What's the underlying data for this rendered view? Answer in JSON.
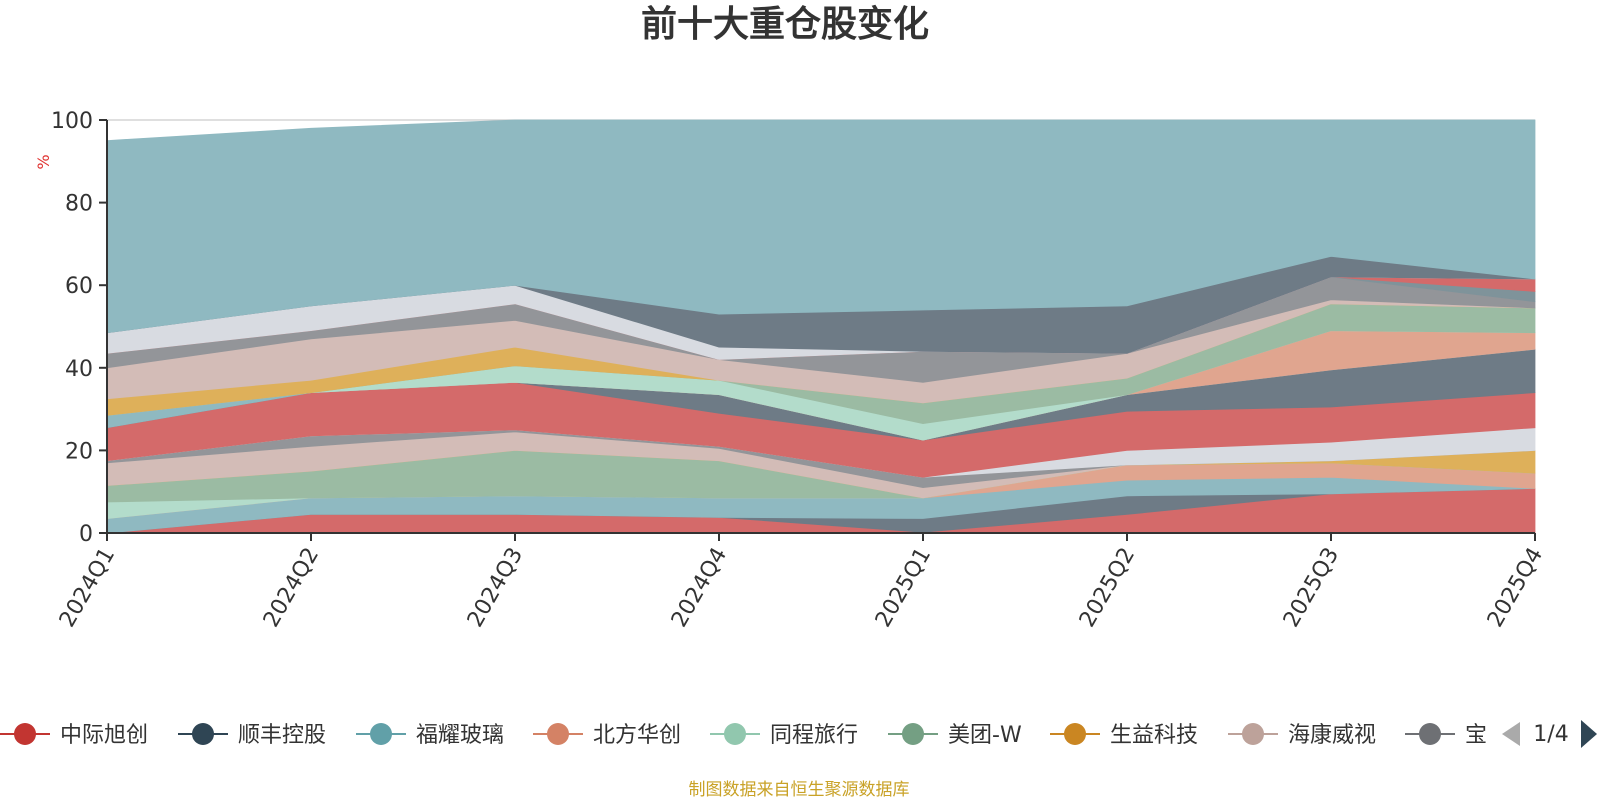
{
  "chart_data": {
    "type": "area",
    "title": "前十大重仓股变化",
    "ylabel": "%",
    "ylim": [
      0,
      100
    ],
    "yticks": [
      0,
      20,
      40,
      60,
      80,
      100
    ],
    "categories": [
      "2024Q1",
      "2024Q2",
      "2024Q3",
      "2024Q4",
      "2025Q1",
      "2025Q2",
      "2025Q3",
      "2025Q4"
    ],
    "grid": true,
    "legend_position": "bottom",
    "legend_visible": [
      "中际旭创",
      "顺丰控股",
      "福耀玻璃",
      "北方华创",
      "同程旅行",
      "美团-W",
      "生益科技",
      "海康威视",
      "宝"
    ],
    "legend_page": "1/4",
    "source": "制图数据来自恒生聚源数据库",
    "layers": [
      {
        "color": "#d46a6a",
        "lower": [
          0,
          0,
          0,
          0,
          0,
          0,
          0,
          0
        ],
        "upper": [
          0,
          4.5,
          4.5,
          3.8,
          0.2,
          4.5,
          9.5,
          10.8
        ]
      },
      {
        "color": "#6e7b86",
        "lower": [
          0,
          4.5,
          4.5,
          3.8,
          0.2,
          4.5,
          9.5,
          10.8
        ],
        "upper": [
          0,
          4.5,
          4.5,
          3.8,
          3.5,
          9.0,
          9.5,
          10.8
        ]
      },
      {
        "color": "#8fb9c1",
        "lower": [
          0,
          4.5,
          4.5,
          3.8,
          3.5,
          9.0,
          9.5,
          10.8
        ],
        "upper": [
          3.5,
          8.5,
          9.0,
          8.5,
          8.5,
          12.8,
          13.5,
          10.8
        ]
      },
      {
        "color": "#e0a58f",
        "lower": [
          3.5,
          8.5,
          9.0,
          8.5,
          8.5,
          12.8,
          13.5,
          10.8
        ],
        "upper": [
          3.5,
          8.5,
          9.0,
          8.5,
          8.5,
          16.5,
          17.0,
          14.5
        ]
      },
      {
        "color": "#b3dccb",
        "lower": [
          3.5,
          8.5,
          9.0,
          8.5,
          8.5,
          16.5,
          17.0,
          14.5
        ],
        "upper": [
          7.5,
          8.5,
          9.0,
          8.5,
          8.5,
          16.5,
          17.0,
          14.5
        ]
      },
      {
        "color": "#9bbba3",
        "lower": [
          7.5,
          8.5,
          9.0,
          8.5,
          8.5,
          16.5,
          17.0,
          14.5
        ],
        "upper": [
          11.5,
          15.0,
          20.0,
          17.5,
          8.5,
          16.5,
          17.0,
          14.5
        ]
      },
      {
        "color": "#deb05a",
        "lower": [
          11.5,
          15.0,
          20.0,
          17.5,
          8.5,
          16.5,
          17.0,
          14.5
        ],
        "upper": [
          11.5,
          15.0,
          20.0,
          17.5,
          8.5,
          16.5,
          17.5,
          20.0
        ]
      },
      {
        "color": "#d3bcb7",
        "lower": [
          11.5,
          15.0,
          20.0,
          17.5,
          8.5,
          16.5,
          17.5,
          20.0
        ],
        "upper": [
          17.0,
          21.0,
          24.5,
          20.5,
          11.0,
          16.5,
          17.5,
          20.0
        ]
      },
      {
        "color": "#939599",
        "lower": [
          17.0,
          21.0,
          24.5,
          20.5,
          11.0,
          16.5,
          17.5,
          20.0
        ],
        "upper": [
          17.5,
          23.5,
          25.0,
          21.0,
          13.5,
          16.5,
          17.5,
          20.0
        ]
      },
      {
        "color": "#d8dbe1",
        "lower": [
          17.5,
          23.5,
          25.0,
          21.0,
          13.5,
          16.5,
          17.5,
          20.0
        ],
        "upper": [
          17.5,
          23.5,
          25.0,
          21.0,
          13.5,
          20.0,
          22.0,
          25.5
        ]
      },
      {
        "color": "#d46a6a",
        "lower": [
          17.5,
          23.5,
          25.0,
          21.0,
          13.5,
          20.0,
          22.0,
          25.5
        ],
        "upper": [
          25.5,
          34.0,
          36.5,
          29.0,
          22.5,
          29.5,
          30.5,
          34.0
        ]
      },
      {
        "color": "#6e7b86",
        "lower": [
          25.5,
          34.0,
          36.5,
          29.0,
          22.5,
          29.5,
          30.5,
          34.0
        ],
        "upper": [
          25.5,
          34.0,
          36.5,
          33.5,
          22.5,
          33.5,
          39.5,
          44.5
        ]
      },
      {
        "color": "#8fb9c1",
        "lower": [
          25.5,
          34.0,
          36.5,
          33.5,
          22.5,
          33.5,
          39.5,
          44.5
        ],
        "upper": [
          28.5,
          34.0,
          36.5,
          33.5,
          22.5,
          33.5,
          39.5,
          44.5
        ]
      },
      {
        "color": "#e0a58f",
        "lower": [
          28.5,
          34.0,
          36.5,
          33.5,
          22.5,
          33.5,
          39.5,
          44.5
        ],
        "upper": [
          28.5,
          34.0,
          36.5,
          33.5,
          22.5,
          33.5,
          49.0,
          48.5
        ]
      },
      {
        "color": "#b3dccb",
        "lower": [
          28.5,
          34.0,
          36.5,
          33.5,
          22.5,
          33.5,
          49.0,
          48.5
        ],
        "upper": [
          28.5,
          34.0,
          40.5,
          37.0,
          26.5,
          33.5,
          49.0,
          48.5
        ]
      },
      {
        "color": "#9bbba3",
        "lower": [
          28.5,
          34.0,
          40.5,
          37.0,
          26.5,
          33.5,
          49.0,
          48.5
        ],
        "upper": [
          28.5,
          34.0,
          40.5,
          37.0,
          31.5,
          37.5,
          55.5,
          54.5
        ]
      },
      {
        "color": "#deb05a",
        "lower": [
          28.5,
          34.0,
          40.5,
          37.0,
          31.5,
          37.5,
          55.5,
          54.5
        ],
        "upper": [
          32.5,
          37.0,
          45.0,
          37.0,
          31.5,
          37.5,
          55.5,
          54.5
        ]
      },
      {
        "color": "#d3bcb7",
        "lower": [
          32.5,
          37.0,
          45.0,
          37.0,
          31.5,
          37.5,
          55.5,
          54.5
        ],
        "upper": [
          40.0,
          47.0,
          51.5,
          42.0,
          36.5,
          43.5,
          56.5,
          54.5
        ]
      },
      {
        "color": "#939599",
        "lower": [
          40.0,
          47.0,
          51.5,
          42.0,
          36.5,
          43.5,
          56.5,
          54.5
        ],
        "upper": [
          43.5,
          49.0,
          55.5,
          42.0,
          44.0,
          43.5,
          62.0,
          56.0
        ]
      },
      {
        "color": "#7f939a",
        "lower": [
          43.5,
          49.0,
          55.5,
          42.0,
          44.0,
          43.5,
          62.0,
          56.0
        ],
        "upper": [
          43.5,
          49.0,
          55.5,
          42.0,
          44.0,
          43.5,
          62.0,
          58.5
        ]
      },
      {
        "color": "#d46a6a",
        "lower": [
          43.5,
          49.0,
          55.5,
          42.0,
          44.0,
          43.5,
          62.0,
          58.5
        ],
        "upper": [
          43.5,
          49.0,
          55.5,
          42.0,
          44.0,
          43.5,
          62.0,
          61.5
        ]
      },
      {
        "color": "#d8dbe1",
        "lower": [
          43.5,
          49.0,
          55.5,
          42.0,
          44.0,
          43.5,
          62.0,
          61.5
        ],
        "upper": [
          48.5,
          55.0,
          60.0,
          45.0,
          44.0,
          43.5,
          62.0,
          61.5
        ]
      },
      {
        "color": "#6e7b86",
        "lower": [
          48.5,
          55.0,
          60.0,
          45.0,
          44.0,
          43.5,
          62.0,
          61.5
        ],
        "upper": [
          48.5,
          55.0,
          60.0,
          53.0,
          54.0,
          55.0,
          67.0,
          61.5
        ]
      },
      {
        "color": "#8fb9c1",
        "lower": [
          48.5,
          55.0,
          60.0,
          53.0,
          54.0,
          55.0,
          67.0,
          61.5
        ],
        "upper": [
          95.0,
          98.0,
          100,
          100,
          100,
          100,
          100,
          100
        ]
      }
    ]
  },
  "legend_items": [
    {
      "label": "中际旭创",
      "color": "#c23531"
    },
    {
      "label": "顺丰控股",
      "color": "#2f4554"
    },
    {
      "label": "福耀玻璃",
      "color": "#61a0a8"
    },
    {
      "label": "北方华创",
      "color": "#d48265"
    },
    {
      "label": "同程旅行",
      "color": "#91c7ae"
    },
    {
      "label": "美团-W",
      "color": "#749f83"
    },
    {
      "label": "生益科技",
      "color": "#ca8622"
    },
    {
      "label": "海康威视",
      "color": "#bda29a"
    },
    {
      "label": "宝",
      "color": "#6e7074"
    }
  ]
}
